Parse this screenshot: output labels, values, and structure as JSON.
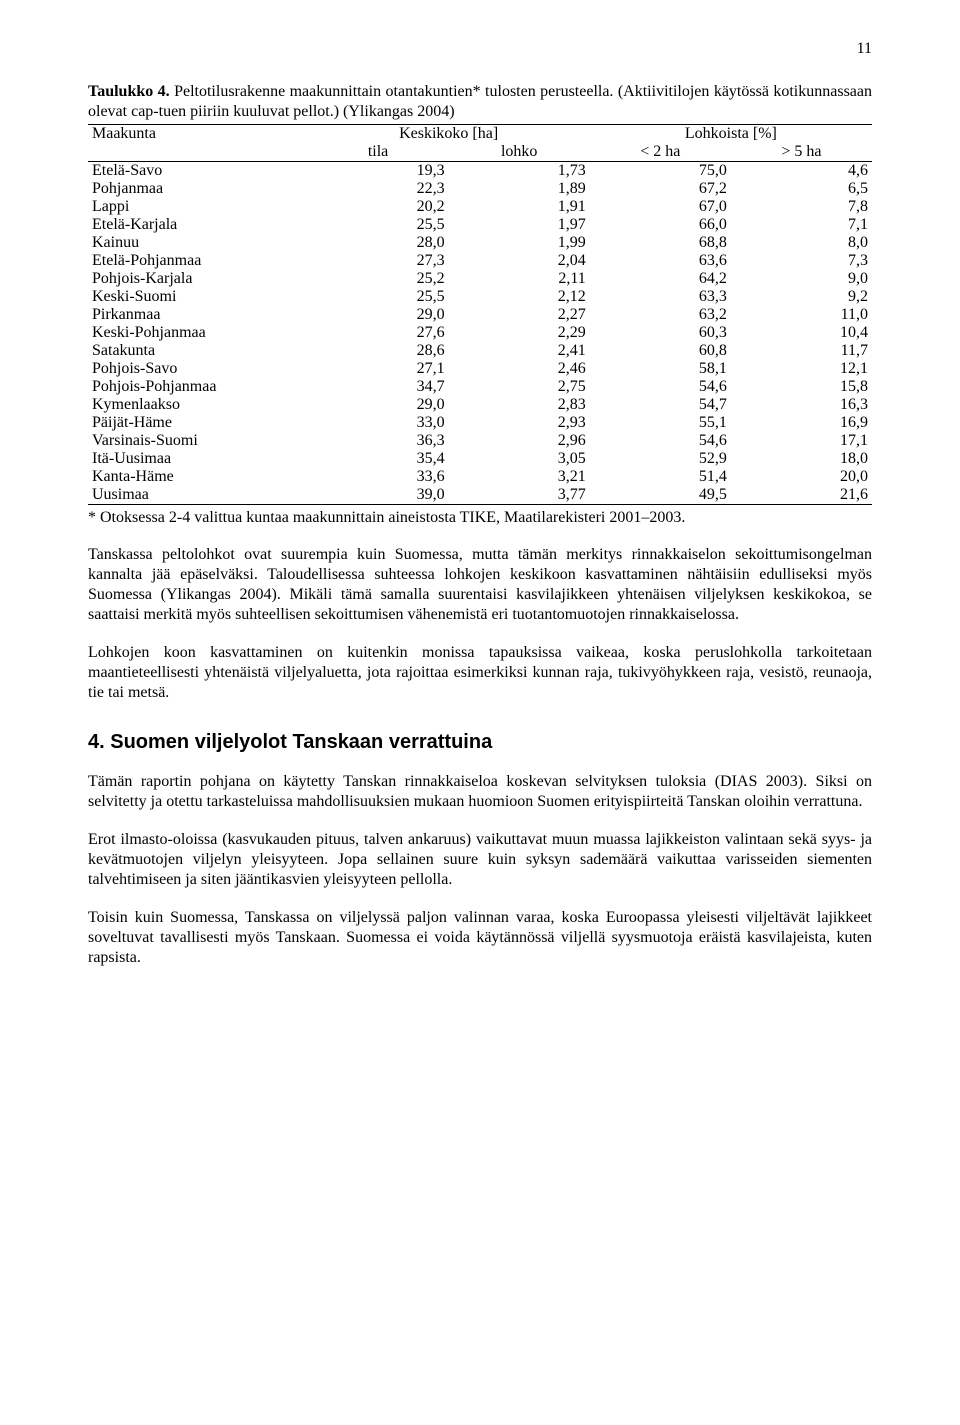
{
  "pageNumber": "11",
  "caption": {
    "label": "Taulukko 4.",
    "title": " Peltotilusrakenne maakunnittain otantakuntien* tulosten perusteella. (Aktiivitilojen käytössä kotikunnassaan olevat cap-tuen piiriin kuuluvat pellot.) (Ylikangas 2004)"
  },
  "table": {
    "headers": {
      "maakunta": "Maakunta",
      "keskikoko": "Keskikoko [ha]",
      "lohkoista": "Lohkoista [%]",
      "tila": "tila",
      "lohko": "lohko",
      "lt2": "< 2 ha",
      "gt5": "> 5 ha"
    },
    "rows": [
      {
        "name": "Etelä-Savo",
        "tila": "19,3",
        "lohko": "1,73",
        "lt2": "75,0",
        "gt5": "4,6"
      },
      {
        "name": "Pohjanmaa",
        "tila": "22,3",
        "lohko": "1,89",
        "lt2": "67,2",
        "gt5": "6,5"
      },
      {
        "name": "Lappi",
        "tila": "20,2",
        "lohko": "1,91",
        "lt2": "67,0",
        "gt5": "7,8"
      },
      {
        "name": "Etelä-Karjala",
        "tila": "25,5",
        "lohko": "1,97",
        "lt2": "66,0",
        "gt5": "7,1"
      },
      {
        "name": "Kainuu",
        "tila": "28,0",
        "lohko": "1,99",
        "lt2": "68,8",
        "gt5": "8,0"
      },
      {
        "name": "Etelä-Pohjanmaa",
        "tila": "27,3",
        "lohko": "2,04",
        "lt2": "63,6",
        "gt5": "7,3"
      },
      {
        "name": "Pohjois-Karjala",
        "tila": "25,2",
        "lohko": "2,11",
        "lt2": "64,2",
        "gt5": "9,0"
      },
      {
        "name": "Keski-Suomi",
        "tila": "25,5",
        "lohko": "2,12",
        "lt2": "63,3",
        "gt5": "9,2"
      },
      {
        "name": "Pirkanmaa",
        "tila": "29,0",
        "lohko": "2,27",
        "lt2": "63,2",
        "gt5": "11,0"
      },
      {
        "name": "Keski-Pohjanmaa",
        "tila": "27,6",
        "lohko": "2,29",
        "lt2": "60,3",
        "gt5": "10,4"
      },
      {
        "name": "Satakunta",
        "tila": "28,6",
        "lohko": "2,41",
        "lt2": "60,8",
        "gt5": "11,7"
      },
      {
        "name": "Pohjois-Savo",
        "tila": "27,1",
        "lohko": "2,46",
        "lt2": "58,1",
        "gt5": "12,1"
      },
      {
        "name": "Pohjois-Pohjanmaa",
        "tila": "34,7",
        "lohko": "2,75",
        "lt2": "54,6",
        "gt5": "15,8"
      },
      {
        "name": "Kymenlaakso",
        "tila": "29,0",
        "lohko": "2,83",
        "lt2": "54,7",
        "gt5": "16,3"
      },
      {
        "name": "Päijät-Häme",
        "tila": "33,0",
        "lohko": "2,93",
        "lt2": "55,1",
        "gt5": "16,9"
      },
      {
        "name": "Varsinais-Suomi",
        "tila": "36,3",
        "lohko": "2,96",
        "lt2": "54,6",
        "gt5": "17,1"
      },
      {
        "name": "Itä-Uusimaa",
        "tila": "35,4",
        "lohko": "3,05",
        "lt2": "52,9",
        "gt5": "18,0"
      },
      {
        "name": "Kanta-Häme",
        "tila": "33,6",
        "lohko": "3,21",
        "lt2": "51,4",
        "gt5": "20,0"
      },
      {
        "name": "Uusimaa",
        "tila": "39,0",
        "lohko": "3,77",
        "lt2": "49,5",
        "gt5": "21,6"
      }
    ]
  },
  "footnote": "* Otoksessa 2-4 valittua kuntaa maakunnittain aineistosta TIKE, Maatilarekisteri 2001–2003.",
  "paragraphs": {
    "p1": "Tanskassa peltolohkot ovat suurempia kuin Suomessa, mutta tämän merkitys rinnakkaiselon sekoittumisongelman kannalta jää epäselväksi. Taloudellisessa suhteessa lohkojen keskikoon kasvattaminen nähtäisiin edulliseksi myös Suomessa (Ylikangas 2004). Mikäli tämä samalla suurentaisi kasvilajikkeen yhtenäisen viljelyksen keskikokoa, se saattaisi merkitä myös suhteellisen sekoittumisen vähenemistä eri tuotantomuotojen rinnakkaiselossa.",
    "p2": "Lohkojen koon kasvattaminen on kuitenkin monissa tapauksissa vaikeaa, koska peruslohkolla tarkoitetaan maantieteellisesti yhtenäistä viljelyaluetta, jota rajoittaa esimerkiksi kunnan raja, tukivyöhykkeen raja, vesistö, reunaoja, tie tai metsä.",
    "p3": "Tämän raportin pohjana on käytetty Tanskan rinnakkaiseloa koskevan selvityksen tuloksia (DIAS 2003). Siksi on selvitetty ja otettu tarkasteluissa mahdollisuuksien mukaan huomioon Suomen erityispiirteitä Tanskan oloihin verrattuna.",
    "p4": "Erot ilmasto-oloissa (kasvukauden pituus, talven ankaruus) vaikuttavat muun muassa lajikkeiston valintaan sekä syys- ja kevätmuotojen viljelyn yleisyyteen. Jopa sellainen suure kuin syksyn sademäärä vaikuttaa varisseiden siementen talvehtimiseen ja siten jääntikasvien yleisyyteen pellolla.",
    "p5": "Toisin kuin Suomessa, Tanskassa on viljelyssä paljon valinnan varaa, koska Euroopassa yleisesti viljeltävät lajikkeet soveltuvat tavallisesti myös Tanskaan. Suomessa ei voida käytännössä viljellä syysmuotoja eräistä kasvilajeista, kuten rapsista."
  },
  "sectionHeading": "4. Suomen viljelyolot Tanskaan verrattuina"
}
